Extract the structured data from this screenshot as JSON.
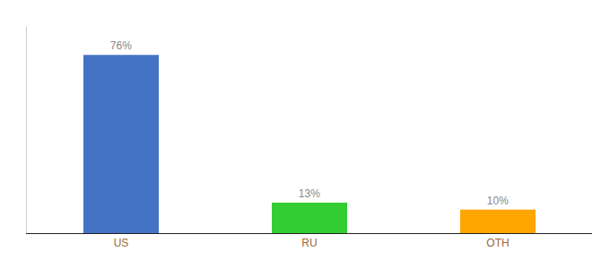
{
  "chart_data": {
    "type": "bar",
    "categories": [
      "US",
      "RU",
      "OTH"
    ],
    "values": [
      76,
      13,
      10
    ],
    "value_labels": [
      "76%",
      "13%",
      "10%"
    ],
    "colors": [
      "#4472C4",
      "#33CC33",
      "#FFA500"
    ],
    "ylim": [
      0,
      88
    ],
    "data_labels": true,
    "tick_labels": "x",
    "grid": false
  }
}
